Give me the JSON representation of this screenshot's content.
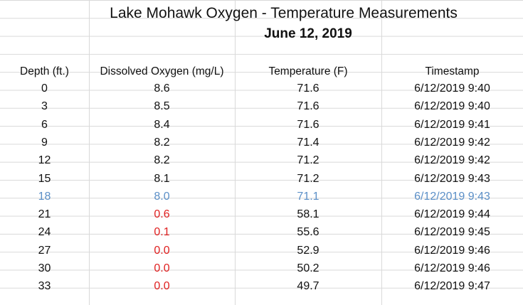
{
  "sheet": {
    "title": "Lake Mohawk Oxygen - Temperature Measurements",
    "subtitle": "June 12, 2019",
    "headers": {
      "depth": "Depth (ft.)",
      "oxygen": "Dissolved Oxygen (mg/L)",
      "temperature": "Temperature (F)",
      "timestamp": "Timestamp"
    },
    "rows": [
      {
        "depth": "0",
        "oxygen": "8.6",
        "temperature": "71.6",
        "timestamp": "6/12/2019 9:40"
      },
      {
        "depth": "3",
        "oxygen": "8.5",
        "temperature": "71.6",
        "timestamp": "6/12/2019 9:40"
      },
      {
        "depth": "6",
        "oxygen": "8.4",
        "temperature": "71.6",
        "timestamp": "6/12/2019 9:41"
      },
      {
        "depth": "9",
        "oxygen": "8.2",
        "temperature": "71.4",
        "timestamp": "6/12/2019 9:42"
      },
      {
        "depth": "12",
        "oxygen": "8.2",
        "temperature": "71.2",
        "timestamp": "6/12/2019 9:42"
      },
      {
        "depth": "15",
        "oxygen": "8.1",
        "temperature": "71.2",
        "timestamp": "6/12/2019 9:43"
      },
      {
        "depth": "18",
        "oxygen": "8.0",
        "temperature": "71.1",
        "timestamp": "6/12/2019 9:43"
      },
      {
        "depth": "21",
        "oxygen": "0.6",
        "temperature": "58.1",
        "timestamp": "6/12/2019 9:44"
      },
      {
        "depth": "24",
        "oxygen": "0.1",
        "temperature": "55.6",
        "timestamp": "6/12/2019 9:45"
      },
      {
        "depth": "27",
        "oxygen": "0.0",
        "temperature": "52.9",
        "timestamp": "6/12/2019 9:46"
      },
      {
        "depth": "30",
        "oxygen": "0.0",
        "temperature": "50.2",
        "timestamp": "6/12/2019 9:46"
      },
      {
        "depth": "33",
        "oxygen": "0.0",
        "temperature": "49.7",
        "timestamp": "6/12/2019 9:47"
      }
    ],
    "colors": {
      "highlight_row": "#5b8fc7",
      "low_oxygen": "#e02020",
      "gridline": "#d9d9d9"
    }
  }
}
